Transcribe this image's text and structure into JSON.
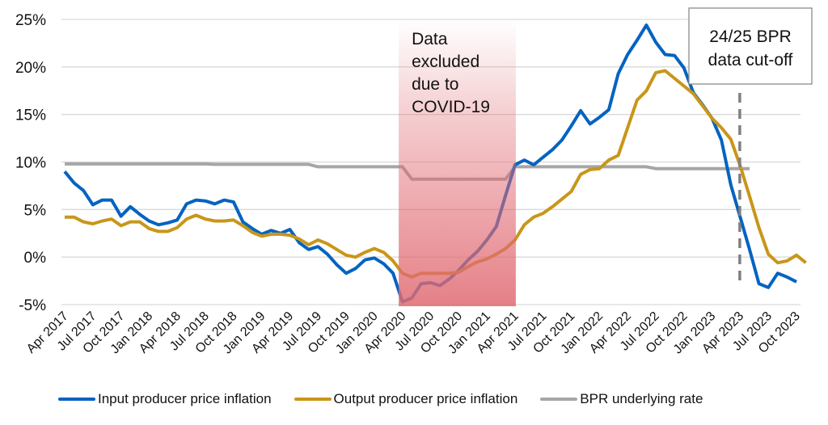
{
  "chart_data": {
    "type": "line",
    "title": "",
    "xlabel": "",
    "ylabel": "",
    "ylim": [
      -5,
      25
    ],
    "yticks": [
      -5,
      0,
      5,
      10,
      15,
      20,
      25
    ],
    "ytick_labels": [
      "-5%",
      "0%",
      "5%",
      "10%",
      "15%",
      "20%",
      "25%"
    ],
    "grid": true,
    "x_start": "Apr 2017",
    "x_end": "Oct 2023",
    "x_frequency": "monthly",
    "xtick_labels": [
      "Apr 2017",
      "Jul 2017",
      "Oct 2017",
      "Jan 2018",
      "Apr 2018",
      "Jul 2018",
      "Oct 2018",
      "Jan 2019",
      "Apr 2019",
      "Jul 2019",
      "Oct 2019",
      "Jan 2020",
      "Apr 2020",
      "Jul 2020",
      "Oct 2020",
      "Jan 2021",
      "Apr 2021",
      "Jul 2021",
      "Oct 2021",
      "Jan 2022",
      "Apr 2022",
      "Jul 2022",
      "Oct 2022",
      "Jan 2023",
      "Apr 2023",
      "Jul 2023",
      "Oct 2023"
    ],
    "legend_position": "bottom",
    "series": [
      {
        "name": "Input producer price inflation",
        "color": "#0563C1",
        "values": [
          9.0,
          7.8,
          7.0,
          5.5,
          6.0,
          6.0,
          4.3,
          5.3,
          4.5,
          3.8,
          3.4,
          3.6,
          3.9,
          5.6,
          6.0,
          5.9,
          5.6,
          6.0,
          5.8,
          3.7,
          3.0,
          2.4,
          2.8,
          2.5,
          2.9,
          1.5,
          0.8,
          1.1,
          0.3,
          -0.8,
          -1.7,
          -1.2,
          -0.3,
          -0.1,
          -0.7,
          -1.7,
          -4.7,
          -4.3,
          -2.8,
          -2.7,
          -3.0,
          -2.3,
          -1.4,
          -0.3,
          0.6,
          1.8,
          3.2,
          6.5,
          9.7,
          10.2,
          9.7,
          10.5,
          11.3,
          12.3,
          13.8,
          15.4,
          14.0,
          14.7,
          15.5,
          19.3,
          21.3,
          22.8,
          24.4,
          22.6,
          21.3,
          21.2,
          19.9,
          17.3,
          16.0,
          14.6,
          12.3,
          7.6,
          4.2,
          0.8,
          -2.8,
          -3.2,
          -1.7,
          -2.1,
          -2.6
        ]
      },
      {
        "name": "Output producer price inflation",
        "color": "#C9961A",
        "values": [
          4.2,
          4.2,
          3.7,
          3.5,
          3.8,
          4.0,
          3.3,
          3.7,
          3.7,
          3.0,
          2.7,
          2.7,
          3.1,
          4.0,
          4.4,
          4.0,
          3.8,
          3.8,
          3.9,
          3.3,
          2.6,
          2.2,
          2.4,
          2.4,
          2.3,
          1.9,
          1.3,
          1.8,
          1.4,
          0.8,
          0.2,
          0.0,
          0.5,
          0.9,
          0.5,
          -0.4,
          -1.7,
          -2.1,
          -1.7,
          -1.7,
          -1.7,
          -1.7,
          -1.6,
          -1.0,
          -0.5,
          -0.2,
          0.3,
          0.9,
          1.8,
          3.4,
          4.2,
          4.6,
          5.3,
          6.1,
          6.9,
          8.7,
          9.2,
          9.3,
          10.2,
          10.7,
          13.6,
          16.5,
          17.5,
          19.4,
          19.6,
          18.8,
          18.0,
          17.2,
          15.9,
          14.6,
          13.6,
          12.4,
          9.6,
          6.4,
          3.1,
          0.3,
          -0.6,
          -0.4,
          0.2,
          -0.6
        ]
      },
      {
        "name": "BPR underlying rate",
        "color": "#A6A6A6",
        "values": [
          9.8,
          9.8,
          9.8,
          9.8,
          9.8,
          9.8,
          9.8,
          9.8,
          9.8,
          9.8,
          9.8,
          9.8,
          9.8,
          9.8,
          9.8,
          9.8,
          9.75,
          9.75,
          9.75,
          9.75,
          9.75,
          9.75,
          9.75,
          9.75,
          9.75,
          9.75,
          9.75,
          9.5,
          9.5,
          9.5,
          9.5,
          9.5,
          9.5,
          9.5,
          9.5,
          9.5,
          9.5,
          8.2,
          8.2,
          8.2,
          8.2,
          8.2,
          8.2,
          8.2,
          8.2,
          8.2,
          8.2,
          8.2,
          9.5,
          9.5,
          9.5,
          9.5,
          9.5,
          9.5,
          9.5,
          9.5,
          9.5,
          9.5,
          9.5,
          9.5,
          9.5,
          9.5,
          9.5,
          9.3,
          9.3,
          9.3,
          9.3,
          9.3,
          9.3,
          9.3,
          9.3,
          9.3,
          9.3,
          9.3,
          null,
          null,
          null,
          null,
          null,
          null
        ]
      }
    ],
    "annotations": [
      {
        "name": "covid-exclusion",
        "type": "shaded-region",
        "x_from": "Mar 2020",
        "x_to": "Apr 2021",
        "color": "#E06A72",
        "label_lines": [
          "Data",
          "excluded",
          "due to",
          "COVID-19"
        ]
      },
      {
        "name": "bpr-cutoff",
        "type": "vertical-dashed-line",
        "x": "Apr 2023",
        "label_lines": [
          "24/25 BPR",
          "data cut-off"
        ]
      }
    ]
  }
}
